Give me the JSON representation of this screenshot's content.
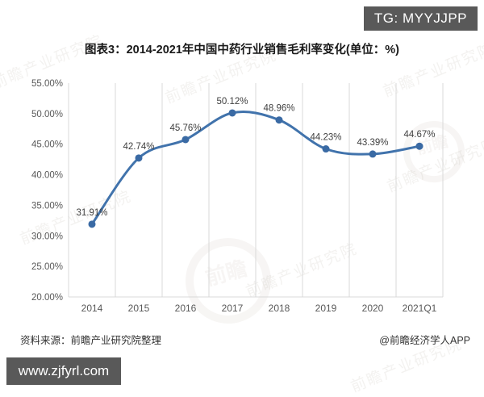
{
  "badge": {
    "label": "TG: MYYJJPP"
  },
  "title": "图表3：2014-2021年中国中药行业销售毛利率变化(单位：%)",
  "watermark": {
    "text": "前瞻产业研究院",
    "emblem": "前瞻"
  },
  "footer": {
    "source": "资料来源：前瞻产业研究院整理",
    "credit": "@前瞻经济学人APP",
    "url": "www.zjfyrl.com"
  },
  "colors": {
    "line": "#4173ac",
    "marker": "#3a6aa4",
    "grid": "#d9d9d9",
    "tick_text": "#595959",
    "data_label": "#404040",
    "badge_bg": "#595959"
  },
  "chart_data": {
    "type": "line",
    "smooth": true,
    "grid": "vertical",
    "legend": "none",
    "title": "图表3：2014-2021年中国中药行业销售毛利率变化(单位：%)",
    "xlabel": "",
    "ylabel": "",
    "categories": [
      "2014",
      "2015",
      "2016",
      "2017",
      "2018",
      "2019",
      "2020",
      "2021Q1"
    ],
    "values": [
      31.91,
      42.74,
      45.76,
      50.12,
      48.96,
      44.23,
      43.39,
      44.67
    ],
    "data_labels": [
      "31.91%",
      "42.74%",
      "45.76%",
      "50.12%",
      "48.96%",
      "44.23%",
      "43.39%",
      "44.67%"
    ],
    "ylim": [
      20,
      55
    ],
    "ytick_step": 5,
    "ytick_labels": [
      "20.00%",
      "25.00%",
      "30.00%",
      "35.00%",
      "40.00%",
      "45.00%",
      "50.00%",
      "55.00%"
    ]
  }
}
